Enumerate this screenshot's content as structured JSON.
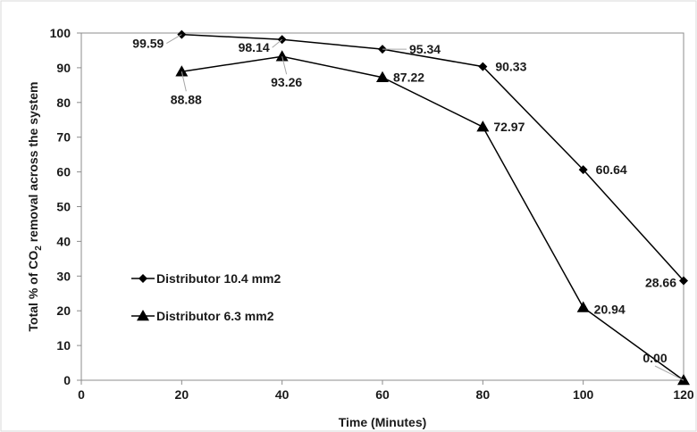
{
  "chart_data": {
    "type": "line",
    "xlabel": "Time (Minutes)",
    "ylabel": {
      "prefix": "Total % of CO",
      "subscript": "2",
      "suffix": " removal across the system"
    },
    "xlim": [
      0,
      120
    ],
    "ylim": [
      0,
      100
    ],
    "x_ticks": [
      "0",
      "20",
      "40",
      "60",
      "80",
      "100",
      "120"
    ],
    "y_ticks": [
      "0",
      "10",
      "20",
      "30",
      "40",
      "50",
      "60",
      "70",
      "80",
      "90",
      "100"
    ],
    "grid": false,
    "legend_position": "left-middle",
    "series": [
      {
        "name": "Distributor 10.4 mm2",
        "marker": "diamond",
        "color": "#000000",
        "x": [
          20,
          40,
          60,
          80,
          100,
          120
        ],
        "y": [
          99.59,
          98.14,
          95.34,
          90.33,
          60.64,
          28.66
        ],
        "labels": [
          "99.59",
          "98.14",
          "95.34",
          "90.33",
          "60.64",
          "28.66"
        ]
      },
      {
        "name": "Distributor 6.3 mm2",
        "marker": "triangle",
        "color": "#000000",
        "x": [
          20,
          40,
          60,
          80,
          100,
          120
        ],
        "y": [
          88.88,
          93.26,
          87.22,
          72.97,
          20.94,
          0.0
        ],
        "labels": [
          "88.88",
          "93.26",
          "87.22",
          "72.97",
          "20.94",
          "0.00"
        ]
      }
    ]
  }
}
